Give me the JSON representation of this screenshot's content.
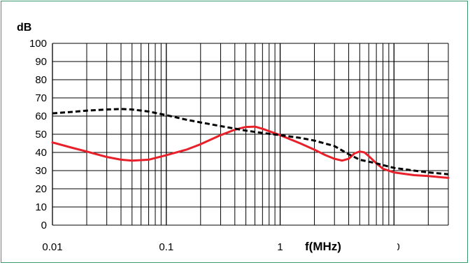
{
  "chart_data": {
    "type": "line",
    "title": "",
    "xlabel": "f(MHz)",
    "ylabel": "dB",
    "xscale": "log",
    "xlim": [
      0.01,
      30
    ],
    "ylim": [
      0,
      100
    ],
    "yticks": [
      0,
      10,
      20,
      30,
      40,
      50,
      60,
      70,
      80,
      90,
      100
    ],
    "xtick_labels": [
      "0.01",
      "0.1",
      "1",
      "10"
    ],
    "grid": true,
    "legend": "none",
    "series": [
      {
        "style": "dashed",
        "color": "#000000",
        "x": [
          0.01,
          0.015,
          0.02,
          0.03,
          0.04,
          0.05,
          0.07,
          0.1,
          0.15,
          0.2,
          0.3,
          0.5,
          0.7,
          1,
          1.5,
          2,
          3,
          4,
          5,
          7,
          10,
          15,
          20,
          30
        ],
        "y": [
          61.5,
          62.3,
          63,
          63.6,
          63.9,
          63.6,
          62.5,
          60.5,
          58,
          56.5,
          54.5,
          52,
          50.7,
          49.5,
          48,
          46.5,
          43.5,
          39,
          36,
          34,
          31.5,
          30,
          29,
          28
        ]
      },
      {
        "style": "solid",
        "color": "#e8202a",
        "x": [
          0.01,
          0.015,
          0.02,
          0.03,
          0.04,
          0.05,
          0.07,
          0.1,
          0.15,
          0.2,
          0.3,
          0.4,
          0.5,
          0.6,
          0.7,
          1,
          1.5,
          2,
          2.5,
          3,
          3.5,
          4,
          4.5,
          5,
          5.5,
          6,
          7,
          8,
          10,
          15,
          20,
          30
        ],
        "y": [
          45.5,
          42.5,
          40.5,
          37.5,
          36,
          35.5,
          36,
          38.5,
          41.5,
          44.5,
          49.5,
          52.5,
          54,
          54.2,
          53,
          49.5,
          45,
          41.5,
          38.5,
          36.5,
          35.5,
          36.5,
          39.5,
          40.5,
          40,
          38,
          34,
          31,
          29,
          27.5,
          27,
          26
        ]
      }
    ]
  }
}
